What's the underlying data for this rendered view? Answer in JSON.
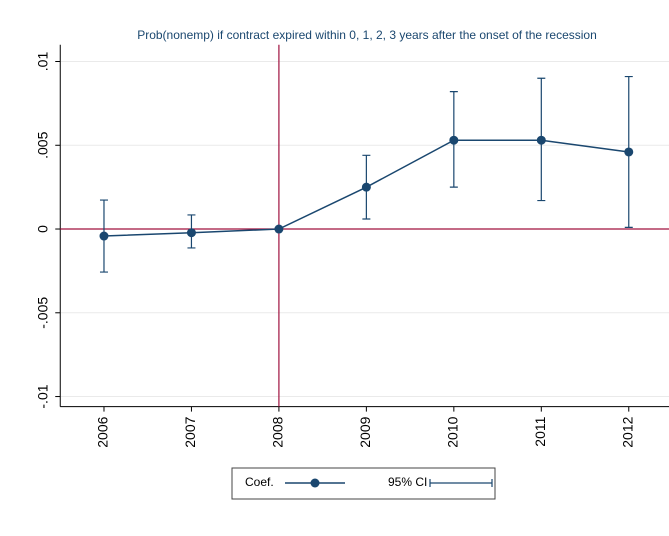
{
  "chart_data": {
    "type": "line",
    "title": "Prob(nonemp) if contract expired within 0, 1, 2, 3 years after the onset of the recession",
    "x": [
      2006,
      2007,
      2008,
      2009,
      2010,
      2011,
      2012
    ],
    "xlim": [
      2005.5,
      2012.46
    ],
    "xticks": [
      2006,
      2007,
      2008,
      2009,
      2010,
      2011,
      2012
    ],
    "ylim": [
      -0.0106,
      0.011
    ],
    "yticks": [
      {
        "value": -0.01,
        "label": "-.01"
      },
      {
        "value": -0.005,
        "label": "-.005"
      },
      0,
      {
        "value": 0.005,
        "label": ".005"
      },
      {
        "value": 0.01,
        "label": ".01"
      }
    ],
    "grid": true,
    "series": [
      {
        "name": "Coef.",
        "color": "#1a476f",
        "values": [
          -0.00042,
          -0.00022,
          0,
          0.0025,
          0.0053,
          0.0053,
          0.0046
        ]
      },
      {
        "name": "95% CI",
        "color": "#1a476f",
        "lower": [
          -0.00257,
          -0.00113,
          0,
          0.0006,
          0.0025,
          0.0017,
          0.0001
        ],
        "upper": [
          0.00173,
          0.00084,
          0,
          0.0044,
          0.0082,
          0.009,
          0.0091
        ]
      }
    ],
    "xline": 2008,
    "yline": 0,
    "ref_color": "#a0123f"
  }
}
